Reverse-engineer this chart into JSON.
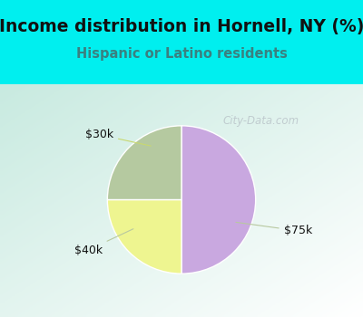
{
  "title": "Income distribution in Hornell, NY (%)",
  "subtitle": "Hispanic or Latino residents",
  "slices": [
    {
      "label": "$75k",
      "value": 50,
      "color": "#c9a8e0"
    },
    {
      "label": "$30k",
      "value": 25,
      "color": "#eef590"
    },
    {
      "label": "$40k",
      "value": 25,
      "color": "#b5c9a0"
    }
  ],
  "background_color": "#00efef",
  "chart_bg_left": "#c8eae0",
  "chart_bg_right": "#f0f8f8",
  "title_color": "#111111",
  "subtitle_color": "#3a8080",
  "watermark": "City-Data.com",
  "label_color": "#111111",
  "line_color": "#c8d890",
  "startangle": 90,
  "title_fontsize": 13.5,
  "subtitle_fontsize": 10.5
}
